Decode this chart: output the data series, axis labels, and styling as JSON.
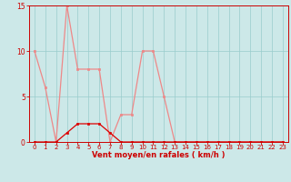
{
  "x": [
    0,
    1,
    2,
    3,
    4,
    5,
    6,
    7,
    8,
    9,
    10,
    11,
    12,
    13,
    14,
    15,
    16,
    17,
    18,
    19,
    20,
    21,
    22,
    23
  ],
  "y_dark": [
    0,
    0,
    0,
    1,
    2,
    2,
    2,
    1,
    0,
    0,
    0,
    0,
    0,
    0,
    0,
    0,
    0,
    0,
    0,
    0,
    0,
    0,
    0,
    0
  ],
  "y_light": [
    10,
    6,
    0,
    15,
    8,
    8,
    8,
    0,
    3,
    3,
    10,
    10,
    5,
    0,
    0,
    0,
    0,
    0,
    0,
    0,
    0,
    0,
    0,
    0
  ],
  "xlabel": "Vent moyen/en rafales ( km/h )",
  "ylim": [
    0,
    15
  ],
  "xlim_min": -0.5,
  "xlim_max": 23.5,
  "yticks": [
    0,
    5,
    10,
    15
  ],
  "xticks": [
    0,
    1,
    2,
    3,
    4,
    5,
    6,
    7,
    8,
    9,
    10,
    11,
    12,
    13,
    14,
    15,
    16,
    17,
    18,
    19,
    20,
    21,
    22,
    23
  ],
  "bg_color": "#cce8e8",
  "grid_color": "#99cccc",
  "dark_line_color": "#dd0000",
  "light_line_color": "#ee8888",
  "axis_label_color": "#cc0000",
  "tick_color": "#cc0000"
}
